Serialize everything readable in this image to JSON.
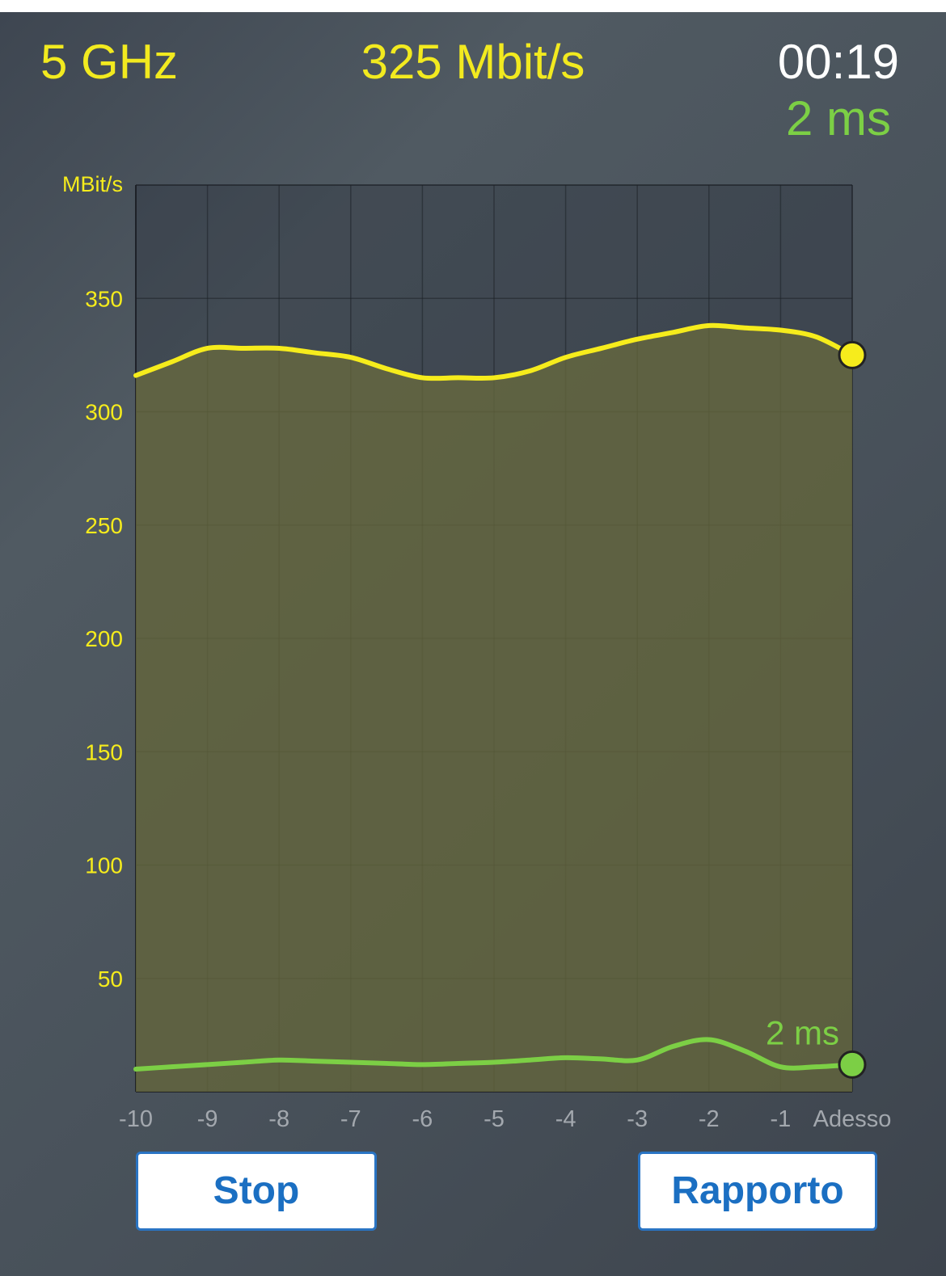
{
  "header": {
    "band": "5 GHz",
    "speed": "325 Mbit/s",
    "timer": "00:19",
    "latency": "2 ms"
  },
  "buttons": {
    "stop_label": "Stop",
    "report_label": "Rapporto"
  },
  "colors": {
    "speed_series": "#f6ec1c",
    "latency_series": "#7ccf45",
    "fill": "#6b6c3d",
    "button_text": "#1b6fc2"
  },
  "chart_data": {
    "type": "line",
    "ylabel": "MBit/s",
    "ylim": [
      0,
      400
    ],
    "xlim": [
      -10,
      0
    ],
    "x_ticks": [
      "-10",
      "-9",
      "-8",
      "-7",
      "-6",
      "-5",
      "-4",
      "-3",
      "-2",
      "-1",
      "Adesso"
    ],
    "y_ticks": [
      "50",
      "100",
      "150",
      "200",
      "250",
      "300",
      "350"
    ],
    "grid": true,
    "series": [
      {
        "key": "speed",
        "x": [
          -10,
          -9.5,
          -9,
          -8.5,
          -8,
          -7.5,
          -7,
          -6.5,
          -6,
          -5.5,
          -5,
          -4.5,
          -4,
          -3.5,
          -3,
          -2.5,
          -2,
          -1.5,
          -1,
          -0.5,
          0
        ],
        "values": [
          316,
          322,
          328,
          328,
          328,
          326,
          324,
          319,
          315,
          315,
          315,
          318,
          324,
          328,
          332,
          335,
          338,
          337,
          336,
          333,
          325
        ]
      },
      {
        "key": "latency",
        "x": [
          -10,
          -9.5,
          -9,
          -8.5,
          -8,
          -7.5,
          -7,
          -6.5,
          -6,
          -5.5,
          -5,
          -4.5,
          -4,
          -3.5,
          -3,
          -2.5,
          -2,
          -1.5,
          -1,
          -0.5,
          0
        ],
        "values": [
          10,
          11,
          12,
          13,
          14,
          13.5,
          13,
          12.5,
          12,
          12.5,
          13,
          14,
          15,
          14.5,
          14,
          20,
          23,
          18,
          11,
          11,
          12
        ],
        "end_label": "2 ms"
      }
    ]
  }
}
